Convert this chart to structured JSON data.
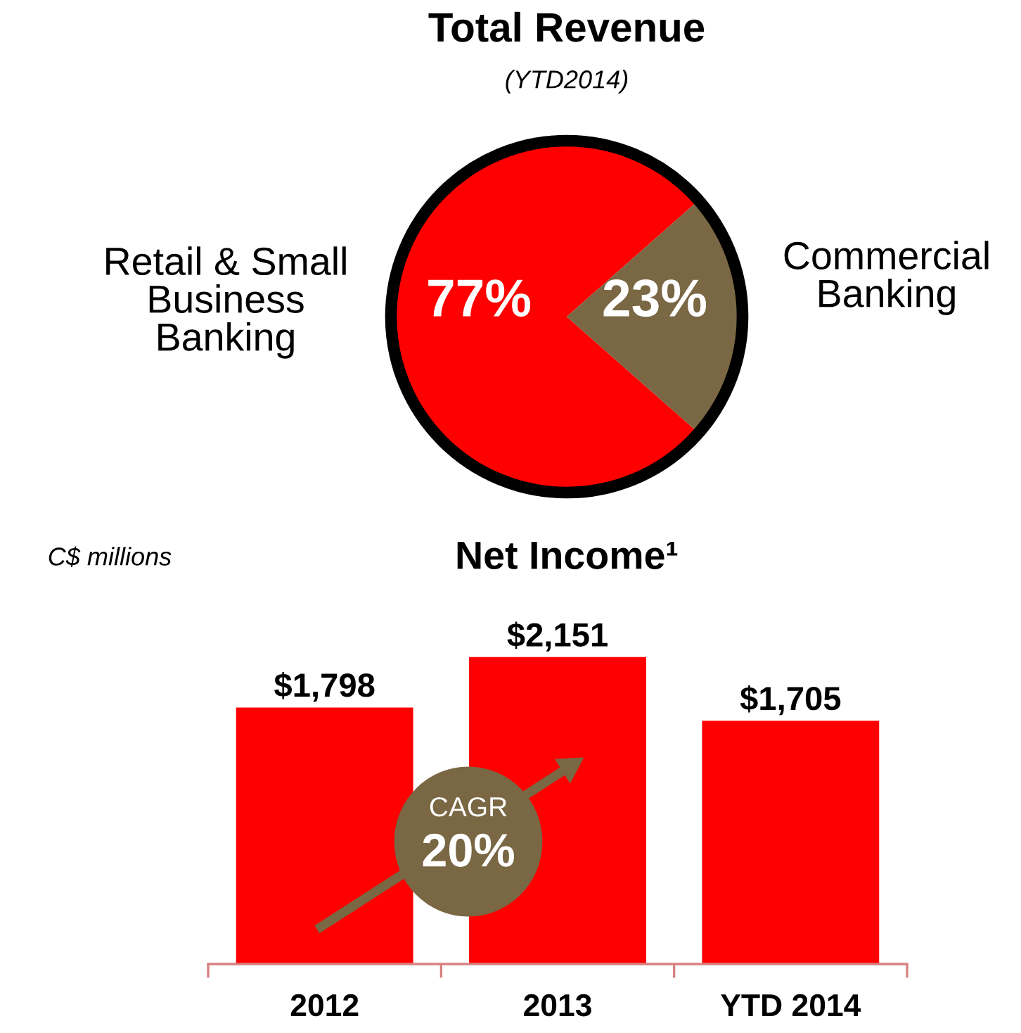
{
  "chart_data": [
    {
      "type": "pie",
      "title": "Total Revenue",
      "subtitle": "(YTD2014)",
      "categories": [
        "Retail & Small\nBusiness\nBanking",
        "Commercial\nBanking"
      ],
      "values": [
        77,
        23
      ],
      "colors": [
        "#ff0000",
        "#7a6743"
      ],
      "value_labels": [
        "77%",
        "23%"
      ]
    },
    {
      "type": "bar",
      "title": "Net Income¹",
      "categories": [
        "2012",
        "2013",
        "YTD 2014"
      ],
      "values": [
        1798,
        2151,
        1705
      ],
      "color": "#ff0000",
      "value_labels": [
        "$1,798",
        "$2,151",
        "$1,705"
      ],
      "tick_labels": "x",
      "annotations": [
        "C$ millions",
        "CAGR",
        "20%"
      ]
    }
  ]
}
